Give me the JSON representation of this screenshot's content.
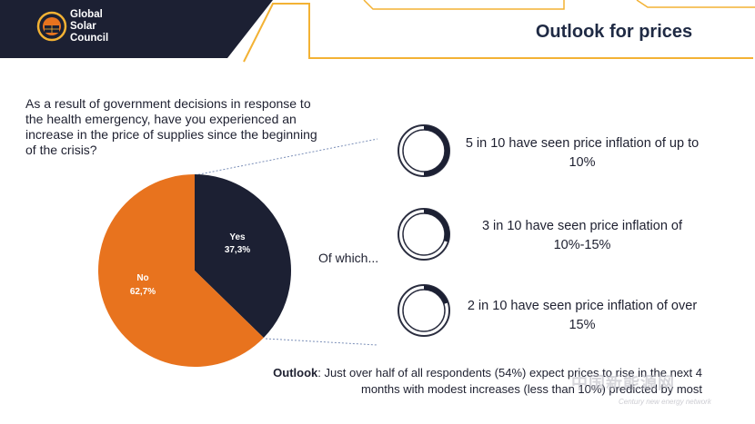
{
  "logo": {
    "line1": "Global",
    "line2": "Solar",
    "line3": "Council"
  },
  "page_title": "Outlook for prices",
  "question": "As a result of government decisions in response to the health emergency, have you experienced an increase in the price of supplies since the beginning of the crisis?",
  "of_which": "Of which...",
  "rings": [
    {
      "text": "5 in 10 have seen price inflation of up to 10%",
      "fraction": 0.5
    },
    {
      "text": "3 in 10 have seen price inflation of 10%-15%",
      "fraction": 0.3
    },
    {
      "text": "2 in 10 have seen price inflation of over 15%",
      "fraction": 0.2
    }
  ],
  "outlook": {
    "label": "Outlook",
    "text": ": Just over half of all respondents (54%) expect prices to rise in the next 4 months with modest increases (less than 10%) predicted by most"
  },
  "watermark": {
    "main": "中国新能源网",
    "sub": "Century new energy network"
  },
  "colors": {
    "navy": "#1c2033",
    "orange": "#e8731e",
    "gold": "#f3b234",
    "title_navy": "#1f2a44"
  },
  "chart_data": {
    "type": "pie",
    "slices": [
      {
        "label": "Yes",
        "value": 37.3,
        "display": "37,3%",
        "color": "#1c2033"
      },
      {
        "label": "No",
        "value": 62.7,
        "display": "62,7%",
        "color": "#e8731e"
      }
    ]
  }
}
